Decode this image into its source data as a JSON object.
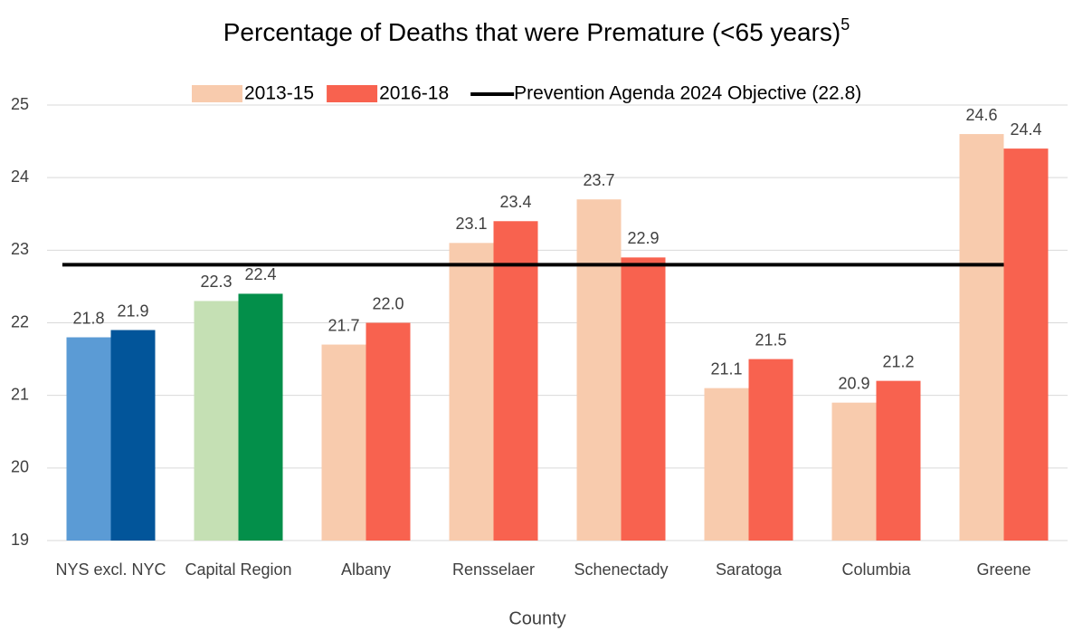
{
  "chart_data": {
    "type": "bar",
    "title": "Percentage of Deaths that were Premature (<65 years)",
    "title_superscript": "5",
    "x_label": "County",
    "categories": [
      "NYS excl. NYC",
      "Capital Region",
      "Albany",
      "Rensselaer",
      "Schenectady",
      "Saratoga",
      "Columbia",
      "Greene"
    ],
    "series": [
      {
        "name": "2013-15",
        "color": "#f8cbad",
        "colors": [
          "#5b9bd5",
          "#c5e0b4",
          "#f8cbad",
          "#f8cbad",
          "#f8cbad",
          "#f8cbad",
          "#f8cbad",
          "#f8cbad"
        ],
        "values": [
          21.8,
          22.3,
          21.7,
          23.1,
          23.7,
          21.1,
          20.9,
          24.6
        ],
        "value_labels": [
          "21.8",
          "22.3",
          "21.7",
          "23.1",
          "23.7",
          "21.1",
          "20.9",
          "24.6"
        ]
      },
      {
        "name": "2016-18",
        "color": "#f8624f",
        "colors": [
          "#02559a",
          "#038f4a",
          "#f8624f",
          "#f8624f",
          "#f8624f",
          "#f8624f",
          "#f8624f",
          "#f8624f"
        ],
        "values": [
          21.9,
          22.4,
          22.0,
          23.4,
          22.9,
          21.5,
          21.2,
          24.4
        ],
        "value_labels": [
          "21.9",
          "22.4",
          "22.0",
          "23.4",
          "22.9",
          "21.5",
          "21.2",
          "24.4"
        ]
      }
    ],
    "reference_line": {
      "name": "Prevention Agenda 2024 Objective (22.8)",
      "value": 22.8,
      "color": "#000000"
    },
    "ylim": [
      19,
      25
    ],
    "yticks": [
      19,
      20,
      21,
      22,
      23,
      24,
      25
    ],
    "grid": true
  }
}
